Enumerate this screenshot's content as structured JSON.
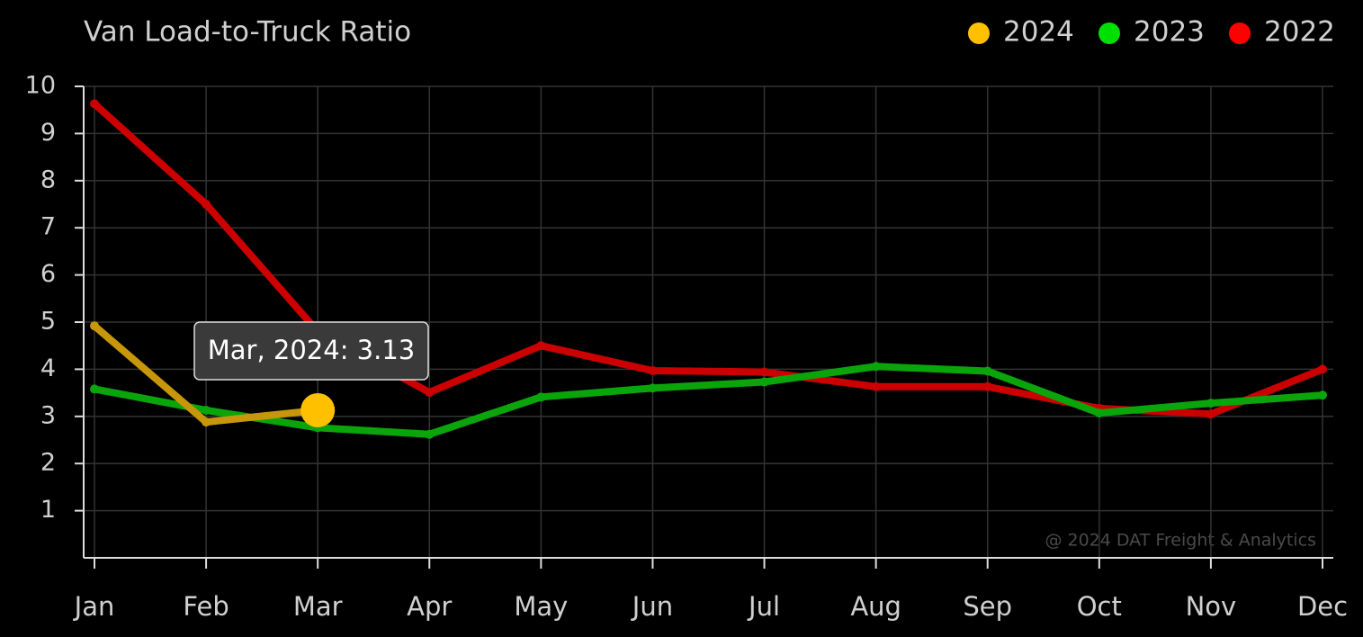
{
  "chart_data": {
    "type": "line",
    "title": "Van Load-to-Truck Ratio",
    "categories": [
      "Jan",
      "Feb",
      "Mar",
      "Apr",
      "May",
      "Jun",
      "Jul",
      "Aug",
      "Sep",
      "Oct",
      "Nov",
      "Dec"
    ],
    "series": [
      {
        "name": "2024",
        "color": "#ffc000",
        "line_color": "#c8960a",
        "values": [
          4.92,
          2.88,
          3.13,
          null,
          null,
          null,
          null,
          null,
          null,
          null,
          null,
          null
        ]
      },
      {
        "name": "2023",
        "color": "#00e000",
        "line_color": "#0aa50a",
        "values": [
          3.58,
          3.13,
          2.76,
          2.62,
          3.41,
          3.6,
          3.73,
          4.06,
          3.96,
          3.07,
          3.28,
          3.45
        ]
      },
      {
        "name": "2022",
        "color": "#ff0000",
        "line_color": "#cc0000",
        "values": [
          9.63,
          7.5,
          4.8,
          3.51,
          4.5,
          3.97,
          3.94,
          3.63,
          3.63,
          3.17,
          3.05,
          4.0
        ]
      }
    ],
    "ylim": [
      0,
      10
    ],
    "yticks": [
      1,
      2,
      3,
      4,
      5,
      6,
      7,
      8,
      9,
      10
    ],
    "grid": true,
    "legend": "top-right",
    "tooltip": "Mar, 2024: 3.13",
    "credit": "@ 2024 DAT Freight & Analytics"
  }
}
